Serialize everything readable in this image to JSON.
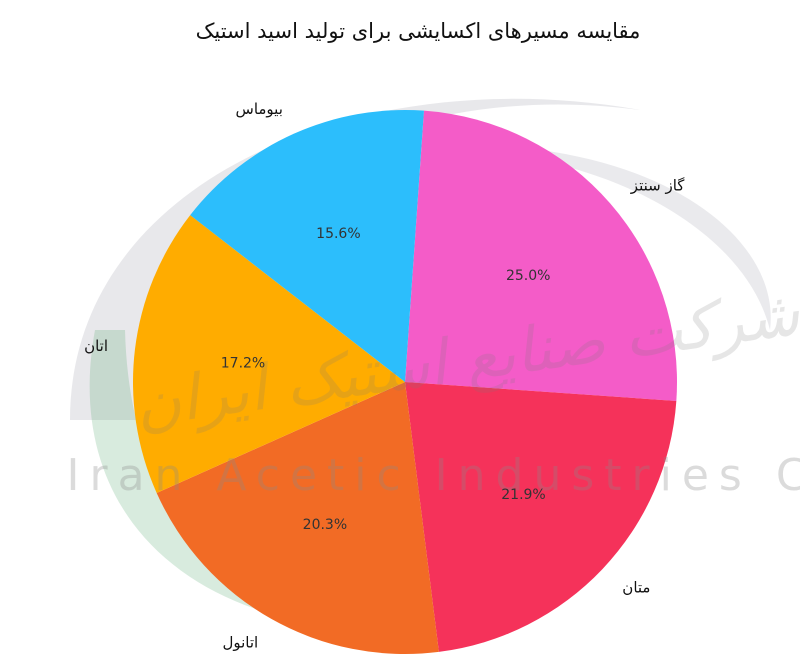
{
  "chart_data": {
    "type": "pie",
    "title": "مقایسه مسیرهای اکسایشی برای تولید اسید استیک",
    "slices": [
      {
        "label": "گاز سنتز",
        "value": 25.0,
        "pct_label": "25.0%",
        "color": "#F45CC8"
      },
      {
        "label": "متان",
        "value": 21.9,
        "pct_label": "21.9%",
        "color": "#F5325A"
      },
      {
        "label": "اتانول",
        "value": 20.3,
        "pct_label": "20.3%",
        "color": "#F26B25"
      },
      {
        "label": "اتان",
        "value": 17.2,
        "pct_label": "17.2%",
        "color": "#FFAC00"
      },
      {
        "label": "بیوماس",
        "value": 15.6,
        "pct_label": "15.6%",
        "color": "#2CBEFC"
      }
    ],
    "start_angle_deg": 4,
    "direction": "clockwise",
    "legend": "none"
  },
  "watermark": {
    "brand_text": "Iran Acetic Industries Co",
    "brand_persian": "شرکت صنایع استیک ایران",
    "colors": {
      "swoosh_dark": "#7F7F8F",
      "swoosh_green": "#4FA66A"
    }
  }
}
